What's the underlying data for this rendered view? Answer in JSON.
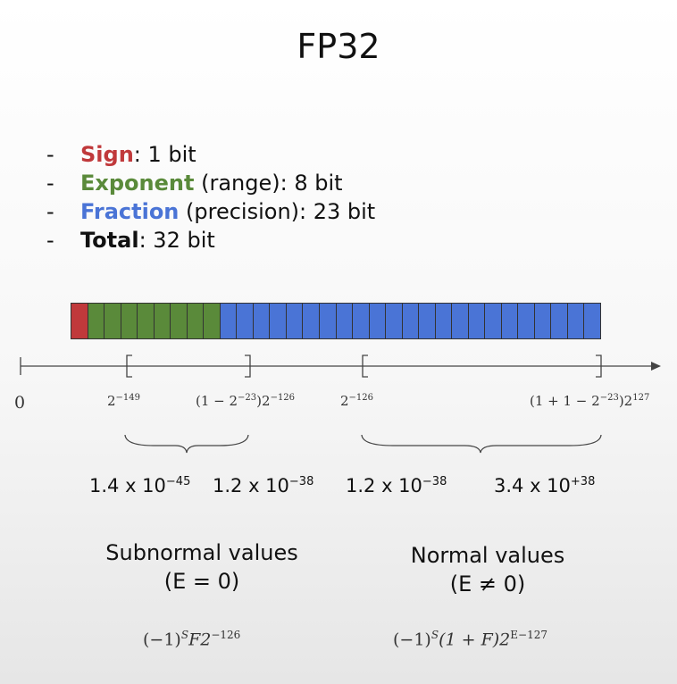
{
  "title": "FP32",
  "colors": {
    "sign": "#c0393b",
    "exponent": "#5a8a3a",
    "fraction": "#4a74d6",
    "axis": "#444444"
  },
  "bullets": [
    {
      "dash": "-",
      "term": "Sign",
      "rest": ": 1 bit",
      "color": "#c0393b"
    },
    {
      "dash": "-",
      "term": "Exponent",
      "rest": " (range): 8 bit",
      "color": "#5a8a3a"
    },
    {
      "dash": "-",
      "term": "Fraction",
      "rest": " (precision): 23 bit",
      "color": "#4a74d6"
    },
    {
      "dash": "-",
      "term": "Total",
      "rest": ": 32 bit",
      "color": "#111111"
    }
  ],
  "bits": {
    "sign": 1,
    "exponent": 8,
    "fraction": 23
  },
  "axis": {
    "origin": "0",
    "labels": [
      {
        "base": "2",
        "exp": "−149"
      },
      {
        "pre": "(1 − 2",
        "pre_exp": "−23",
        "mid": ")2",
        "exp": "−126"
      },
      {
        "base": "2",
        "exp": "−126"
      },
      {
        "pre": "(1 + 1 − 2",
        "pre_exp": "−23",
        "mid": ")2",
        "exp": "127"
      }
    ]
  },
  "approx": [
    {
      "mant": "1.4 x 10",
      "exp": "−45"
    },
    {
      "mant": "1.2 x 10",
      "exp": "−38"
    },
    {
      "mant": "1.2 x 10",
      "exp": "−38"
    },
    {
      "mant": "3.4 x 10",
      "exp": "+38"
    }
  ],
  "regions": {
    "subnormal": {
      "title": "Subnormal values",
      "condition": "(E = 0)"
    },
    "normal": {
      "title": "Normal values",
      "condition": "(E ≠ 0)"
    }
  },
  "formulas": {
    "subnormal": {
      "a": "(−1)",
      "a_exp": "S",
      "b": "F2",
      "b_exp": "−126"
    },
    "normal": {
      "a": "(−1)",
      "a_exp": "S",
      "b": "(1 + F)2",
      "b_exp": "E−127"
    }
  }
}
